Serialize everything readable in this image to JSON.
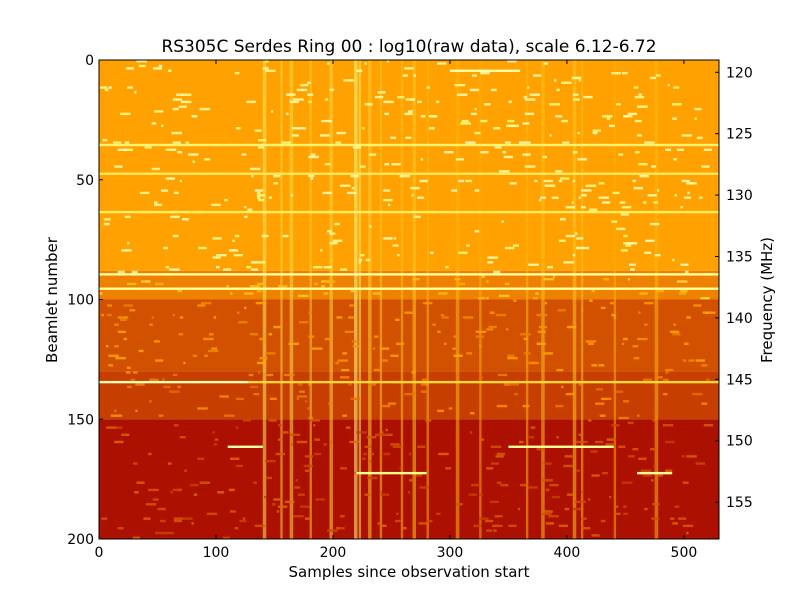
{
  "chart_data": {
    "type": "heatmap",
    "title": "RS305C Serdes Ring 00 : log10(raw data), scale 6.12-6.72",
    "xlabel": "Samples since observation start",
    "ylabel": "Beamlet number",
    "ylabel_right": "Frequency (MHz)",
    "xlim": [
      0,
      530
    ],
    "ylim": [
      200,
      0
    ],
    "y2lim": [
      158.0,
      119.0
    ],
    "x_ticks": [
      {
        "value": 0,
        "label": "0"
      },
      {
        "value": 100,
        "label": "100"
      },
      {
        "value": 200,
        "label": "200"
      },
      {
        "value": 300,
        "label": "300"
      },
      {
        "value": 400,
        "label": "400"
      },
      {
        "value": 500,
        "label": "500"
      }
    ],
    "y_ticks": [
      {
        "value": 0,
        "label": "0"
      },
      {
        "value": 50,
        "label": "50"
      },
      {
        "value": 100,
        "label": "100"
      },
      {
        "value": 150,
        "label": "150"
      },
      {
        "value": 200,
        "label": "200"
      }
    ],
    "y2_ticks": [
      {
        "value": 120,
        "label": "120"
      },
      {
        "value": 125,
        "label": "125"
      },
      {
        "value": 130,
        "label": "130"
      },
      {
        "value": 135,
        "label": "135"
      },
      {
        "value": 140,
        "label": "140"
      },
      {
        "value": 145,
        "label": "145"
      },
      {
        "value": 150,
        "label": "150"
      },
      {
        "value": 155,
        "label": "155"
      }
    ],
    "color_scale": {
      "min": 6.12,
      "max": 6.72,
      "colormap": "afmhot",
      "low_color": "#7a1000",
      "high_color": "#fff2c0"
    },
    "grid": false,
    "legend": "none",
    "row_bands": [
      {
        "beamlet_start": 0,
        "beamlet_end": 88,
        "level": 0.66
      },
      {
        "beamlet_start": 88,
        "beamlet_end": 100,
        "level": 0.58
      },
      {
        "beamlet_start": 100,
        "beamlet_end": 130,
        "level": 0.45
      },
      {
        "beamlet_start": 130,
        "beamlet_end": 150,
        "level": 0.4
      },
      {
        "beamlet_start": 150,
        "beamlet_end": 200,
        "level": 0.28
      }
    ],
    "bright_columns": [
      {
        "sample": 140,
        "width": 3,
        "level": 0.85
      },
      {
        "sample": 155,
        "width": 2,
        "level": 0.8
      },
      {
        "sample": 163,
        "width": 3,
        "level": 0.82
      },
      {
        "sample": 180,
        "width": 2,
        "level": 0.78
      },
      {
        "sample": 197,
        "width": 3,
        "level": 0.8
      },
      {
        "sample": 218,
        "width": 3,
        "level": 0.92
      },
      {
        "sample": 222,
        "width": 2,
        "level": 0.85
      },
      {
        "sample": 230,
        "width": 3,
        "level": 0.78
      },
      {
        "sample": 240,
        "width": 2,
        "level": 0.76
      },
      {
        "sample": 258,
        "width": 2,
        "level": 0.74
      },
      {
        "sample": 268,
        "width": 3,
        "level": 0.76
      },
      {
        "sample": 280,
        "width": 2,
        "level": 0.72
      },
      {
        "sample": 305,
        "width": 3,
        "level": 0.72
      },
      {
        "sample": 325,
        "width": 2,
        "level": 0.7
      },
      {
        "sample": 365,
        "width": 2,
        "level": 0.72
      },
      {
        "sample": 378,
        "width": 3,
        "level": 0.74
      },
      {
        "sample": 405,
        "width": 3,
        "level": 0.76
      },
      {
        "sample": 412,
        "width": 2,
        "level": 0.74
      },
      {
        "sample": 440,
        "width": 2,
        "level": 0.7
      },
      {
        "sample": 475,
        "width": 3,
        "level": 0.72
      }
    ],
    "rfi_lines": [
      {
        "beamlet": 4,
        "sample_start": 300,
        "sample_end": 360,
        "level": 0.98
      },
      {
        "beamlet": 35,
        "sample_start": 0,
        "sample_end": 530,
        "level": 0.88
      },
      {
        "beamlet": 47,
        "sample_start": 0,
        "sample_end": 530,
        "level": 0.85
      },
      {
        "beamlet": 63,
        "sample_start": 0,
        "sample_end": 530,
        "level": 0.86
      },
      {
        "beamlet": 89,
        "sample_start": 0,
        "sample_end": 530,
        "level": 0.97
      },
      {
        "beamlet": 95,
        "sample_start": 0,
        "sample_end": 530,
        "level": 0.95
      },
      {
        "beamlet": 134,
        "sample_start": 0,
        "sample_end": 128,
        "level": 1.0
      },
      {
        "beamlet": 134,
        "sample_start": 128,
        "sample_end": 530,
        "level": 0.8
      },
      {
        "beamlet": 161,
        "sample_start": 110,
        "sample_end": 140,
        "level": 0.97
      },
      {
        "beamlet": 161,
        "sample_start": 350,
        "sample_end": 440,
        "level": 0.95
      },
      {
        "beamlet": 172,
        "sample_start": 220,
        "sample_end": 280,
        "level": 0.92
      },
      {
        "beamlet": 172,
        "sample_start": 460,
        "sample_end": 490,
        "level": 0.95
      }
    ]
  }
}
